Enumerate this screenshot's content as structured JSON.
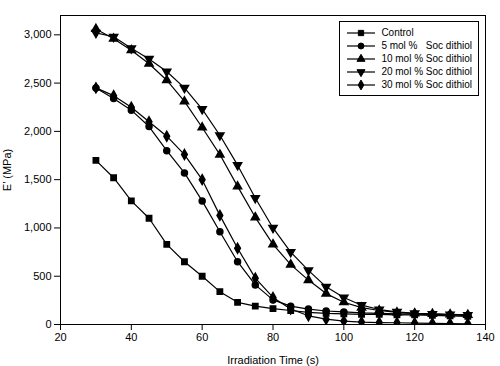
{
  "chart_data": {
    "type": "line",
    "xlabel": "Irradiation Time (s)",
    "ylabel": "E’ (MPa)",
    "xlim": [
      20,
      140
    ],
    "ylim": [
      0,
      3200
    ],
    "xticks": [
      20,
      40,
      60,
      80,
      100,
      120,
      140
    ],
    "yticks": [
      0,
      500,
      1000,
      1500,
      2000,
      2500,
      3000
    ],
    "grid": false,
    "legend": "upper right",
    "x": [
      30,
      35,
      40,
      45,
      50,
      55,
      60,
      65,
      70,
      75,
      80,
      85,
      90,
      95,
      100,
      105,
      110,
      115,
      120,
      125,
      130,
      135
    ],
    "series": [
      {
        "name": "Control",
        "color": "#000000",
        "marker": "square",
        "values": [
          1700,
          1520,
          1280,
          1100,
          830,
          650,
          500,
          340,
          230,
          190,
          165,
          145,
          125,
          115,
          110,
          105,
          105,
          100,
          100,
          95,
          90,
          85
        ]
      },
      {
        "name": "5 mol %   Soc dithiol",
        "color": "#000000",
        "marker": "circle",
        "values": [
          2450,
          2340,
          2220,
          2050,
          1800,
          1570,
          1280,
          960,
          650,
          410,
          255,
          190,
          160,
          140,
          130,
          120,
          115,
          110,
          107,
          105,
          100,
          95
        ]
      },
      {
        "name": "10 mol % Soc dithiol",
        "color": "#000000",
        "marker": "triangle-up",
        "values": [
          3060,
          2960,
          2840,
          2700,
          2530,
          2310,
          2040,
          1760,
          1430,
          1110,
          830,
          620,
          460,
          320,
          230,
          175,
          145,
          125,
          115,
          110,
          105,
          100
        ]
      },
      {
        "name": "20 mol % Soc dithiol",
        "color": "#000000",
        "marker": "triangle-down",
        "values": [
          3020,
          2980,
          2860,
          2750,
          2620,
          2450,
          2230,
          1960,
          1650,
          1310,
          1000,
          750,
          560,
          390,
          280,
          200,
          155,
          130,
          115,
          108,
          103,
          98
        ]
      },
      {
        "name": "30 mol % Soc dithiol",
        "color": "#000000",
        "marker": "diamond",
        "values": [
          2450,
          2370,
          2250,
          2100,
          1950,
          1760,
          1500,
          1130,
          790,
          480,
          280,
          160,
          90,
          55,
          35,
          25,
          20,
          18,
          15,
          12,
          10,
          8
        ]
      }
    ]
  }
}
